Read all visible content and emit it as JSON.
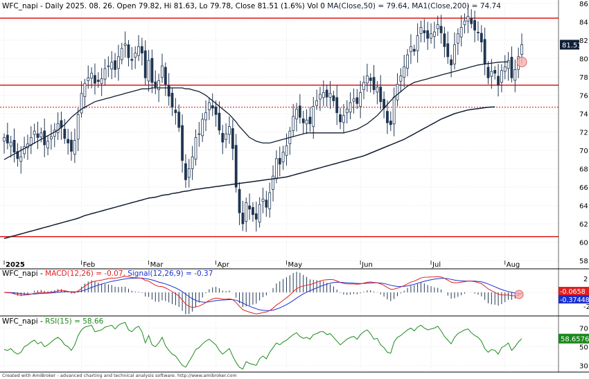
{
  "chart_data": [
    {
      "panel": "price",
      "type": "candlestick",
      "title": "WFC_napi - Daily 2025. 08. 26. Open 79.82, Hi 81.63, Lo 79.78, Close 81.51 (1.6%) Vol 0",
      "ma50_label": "MA(Close,50) = 79.64,",
      "ma200_label": "MA1(Close,200) = 74.74",
      "last_close_label": "81.51",
      "ylim": [
        58,
        86
      ],
      "y_ticks": [
        "86",
        "84",
        "82",
        "80",
        "78",
        "76",
        "74",
        "72",
        "70",
        "68",
        "66",
        "64",
        "62",
        "60",
        "58"
      ],
      "month_labels": [
        "2025",
        "Feb",
        "Mar",
        "Apr",
        "May",
        "Jun",
        "Jul",
        "Aug"
      ],
      "month_start_index": [
        0,
        23,
        43,
        63,
        84,
        106,
        127,
        149
      ],
      "horizontal_levels": [
        {
          "value": 84.4,
          "style": "solid"
        },
        {
          "value": 77.1,
          "style": "solid"
        },
        {
          "value": 74.7,
          "style": "dashed"
        },
        {
          "value": 60.6,
          "style": "solid"
        }
      ],
      "close": [
        71.4,
        70.8,
        70.9,
        69.8,
        69.1,
        69.3,
        70.4,
        70.7,
        71.4,
        72.1,
        71.4,
        71.9,
        70.6,
        71.0,
        71.5,
        72.2,
        72.9,
        72.5,
        71.3,
        70.8,
        69.9,
        71.1,
        73.9,
        76.2,
        77.3,
        77.9,
        78.4,
        77.3,
        77.5,
        77.8,
        78.9,
        79.2,
        79.6,
        78.8,
        80.2,
        81.1,
        81.6,
        80.1,
        79.8,
        80.6,
        81.3,
        80.6,
        77.9,
        79.8,
        77.4,
        76.9,
        77.6,
        79.2,
        77.2,
        75.9,
        74.7,
        74.1,
        72.5,
        68.9,
        66.8,
        68.0,
        69.3,
        71.4,
        71.8,
        73.4,
        74.1,
        75.2,
        74.6,
        73.9,
        72.2,
        70.9,
        71.8,
        72.6,
        70.2,
        66.0,
        63.2,
        62.0,
        64.3,
        63.6,
        63.0,
        62.5,
        64.1,
        64.7,
        63.8,
        65.4,
        67.2,
        69.1,
        68.5,
        69.8,
        70.5,
        72.1,
        73.7,
        74.5,
        73.6,
        73.0,
        73.3,
        72.9,
        74.8,
        75.4,
        76.1,
        76.3,
        75.8,
        76.2,
        75.4,
        74.1,
        73.1,
        73.8,
        74.5,
        75.2,
        75.6,
        75.1,
        76.3,
        77.4,
        78.1,
        77.6,
        76.6,
        76.9,
        75.3,
        74.6,
        73.0,
        72.8,
        75.8,
        77.2,
        78.1,
        79.1,
        80.4,
        81.3,
        80.8,
        82.5,
        83.4,
        82.8,
        82.2,
        82.7,
        82.9,
        83.7,
        82.8,
        81.3,
        80.2,
        79.3,
        81.5,
        82.7,
        83.4,
        84.1,
        84.6,
        83.8,
        83.1,
        82.8,
        81.8,
        79.4,
        77.9,
        78.6,
        78.4,
        77.1,
        78.7,
        79.1,
        79.8,
        77.9,
        78.8,
        80.2,
        81.51
      ],
      "ma50": [
        69.0,
        69.2,
        69.4,
        69.6,
        69.8,
        70.0,
        70.2,
        70.4,
        70.6,
        70.8,
        71.0,
        71.2,
        71.4,
        71.6,
        71.8,
        72.0,
        72.2,
        72.5,
        72.8,
        73.2,
        73.6,
        73.9,
        74.2,
        74.5,
        74.7,
        74.9,
        75.1,
        75.3,
        75.4,
        75.5,
        75.6,
        75.7,
        75.8,
        75.9,
        76.0,
        76.1,
        76.2,
        76.3,
        76.4,
        76.5,
        76.6,
        76.7,
        76.7,
        76.7,
        76.8,
        76.8,
        76.8,
        76.8,
        76.8,
        76.8,
        76.8,
        76.8,
        76.8,
        76.8,
        76.7,
        76.7,
        76.6,
        76.5,
        76.4,
        76.2,
        76.0,
        75.7,
        75.4,
        75.1,
        74.8,
        74.5,
        74.2,
        73.9,
        73.5,
        73.1,
        72.6,
        72.2,
        71.8,
        71.4,
        71.2,
        71.0,
        70.9,
        70.8,
        70.8,
        70.8,
        70.9,
        71.0,
        71.1,
        71.2,
        71.3,
        71.4,
        71.5,
        71.6,
        71.7,
        71.8,
        71.9,
        71.9,
        71.9,
        71.9,
        71.9,
        71.9,
        71.9,
        71.9,
        71.9,
        71.9,
        71.9,
        71.9,
        72.0,
        72.1,
        72.2,
        72.3,
        72.5,
        72.7,
        72.9,
        73.2,
        73.5,
        73.8,
        74.2,
        74.6,
        75.0,
        75.4,
        75.8,
        76.1,
        76.4,
        76.7,
        77.0,
        77.2,
        77.4,
        77.5,
        77.6,
        77.7,
        77.8,
        77.9,
        78.0,
        78.1,
        78.2,
        78.3,
        78.4,
        78.5,
        78.6,
        78.7,
        78.8,
        78.9,
        79.0,
        79.1,
        79.2,
        79.3,
        79.35,
        79.4,
        79.45,
        79.5,
        79.55,
        79.6,
        79.62,
        79.63,
        79.64
      ],
      "ma200": [
        60.4,
        60.5,
        60.6,
        60.7,
        60.8,
        60.9,
        61.0,
        61.1,
        61.2,
        61.3,
        61.4,
        61.5,
        61.6,
        61.7,
        61.8,
        61.9,
        62.0,
        62.1,
        62.2,
        62.3,
        62.4,
        62.5,
        62.6,
        62.75,
        62.9,
        63.0,
        63.1,
        63.2,
        63.3,
        63.4,
        63.5,
        63.6,
        63.7,
        63.8,
        63.9,
        64.0,
        64.1,
        64.2,
        64.3,
        64.4,
        64.5,
        64.6,
        64.7,
        64.8,
        64.85,
        64.9,
        65.0,
        65.1,
        65.15,
        65.2,
        65.3,
        65.35,
        65.4,
        65.5,
        65.55,
        65.6,
        65.7,
        65.75,
        65.8,
        65.85,
        65.9,
        65.95,
        66.0,
        66.05,
        66.1,
        66.15,
        66.2,
        66.25,
        66.3,
        66.35,
        66.4,
        66.45,
        66.5,
        66.55,
        66.6,
        66.65,
        66.7,
        66.75,
        66.8,
        66.85,
        66.9,
        66.95,
        67.0,
        67.05,
        67.1,
        67.2,
        67.3,
        67.4,
        67.5,
        67.6,
        67.7,
        67.8,
        67.9,
        68.0,
        68.1,
        68.2,
        68.3,
        68.4,
        68.5,
        68.6,
        68.7,
        68.8,
        68.9,
        69.0,
        69.1,
        69.2,
        69.3,
        69.4,
        69.55,
        69.7,
        69.85,
        70.0,
        70.15,
        70.3,
        70.45,
        70.6,
        70.75,
        70.9,
        71.05,
        71.2,
        71.4,
        71.6,
        71.8,
        72.0,
        72.2,
        72.4,
        72.6,
        72.8,
        73.0,
        73.2,
        73.4,
        73.55,
        73.7,
        73.85,
        74.0,
        74.1,
        74.2,
        74.3,
        74.4,
        74.45,
        74.5,
        74.55,
        74.6,
        74.65,
        74.7,
        74.72,
        74.74
      ]
    },
    {
      "panel": "macd",
      "type": "line",
      "title_prefix": "WFC_napi -",
      "macd_label": "MACD(12,26) = -0.07,",
      "signal_label": "Signal(12,26,9) = -0.37",
      "macd_value_tag": "-0.0658",
      "signal_value_tag": "-0.37448",
      "ylim": [
        -3,
        3
      ],
      "y_ticks": [
        "2",
        "0",
        "-2"
      ],
      "macd_color": "#e02020",
      "signal_color": "#1a2fd0"
    },
    {
      "panel": "rsi",
      "type": "line",
      "title_prefix": "WFC_napi -",
      "rsi_label": "RSI(15) = 58.66",
      "rsi_value_tag": "58.6576",
      "ylim": [
        25,
        80
      ],
      "y_ticks": [
        "70",
        "50",
        "30"
      ],
      "rsi_color": "#1a8a1a",
      "rsi": [
        47,
        46,
        48,
        44,
        42,
        44,
        50,
        52,
        55,
        57,
        53,
        55,
        50,
        52,
        55,
        58,
        60,
        57,
        52,
        50,
        46,
        52,
        62,
        68,
        71,
        72,
        73,
        66,
        67,
        68,
        71,
        72,
        73,
        69,
        73,
        75,
        76,
        68,
        66,
        70,
        72,
        66,
        54,
        62,
        52,
        50,
        54,
        60,
        51,
        46,
        42,
        40,
        35,
        30,
        28,
        34,
        40,
        47,
        49,
        53,
        56,
        58,
        55,
        52,
        46,
        42,
        45,
        48,
        40,
        33,
        28,
        26,
        34,
        32,
        31,
        30,
        37,
        40,
        37,
        44,
        49,
        54,
        52,
        55,
        57,
        60,
        63,
        65,
        61,
        59,
        60,
        58,
        63,
        64,
        66,
        66,
        63,
        64,
        60,
        56,
        52,
        55,
        58,
        60,
        61,
        58,
        63,
        66,
        68,
        64,
        58,
        59,
        52,
        49,
        44,
        43,
        55,
        60,
        62,
        65,
        68,
        70,
        67,
        71,
        73,
        70,
        68,
        69,
        70,
        72,
        67,
        61,
        57,
        53,
        60,
        64,
        66,
        68,
        69,
        65,
        62,
        60,
        56,
        48,
        44,
        47,
        46,
        42,
        49,
        51,
        54,
        46,
        50,
        55,
        58.66
      ]
    }
  ],
  "footer": "Created with AmiBroker - advanced charting and technical analysis software. http://www.amibroker.com",
  "colors": {
    "grid": "#cccccc",
    "level": "#dd0000",
    "up_candle": "#ffffff",
    "down_candle": "#1f3552",
    "ma_line": "#101c30",
    "last_close_bg": "#0f1f36",
    "rsi_tag_bg": "#1a8a1a",
    "macd_tag_bg": "#e02020",
    "signal_tag_bg": "#1a2fd0"
  }
}
